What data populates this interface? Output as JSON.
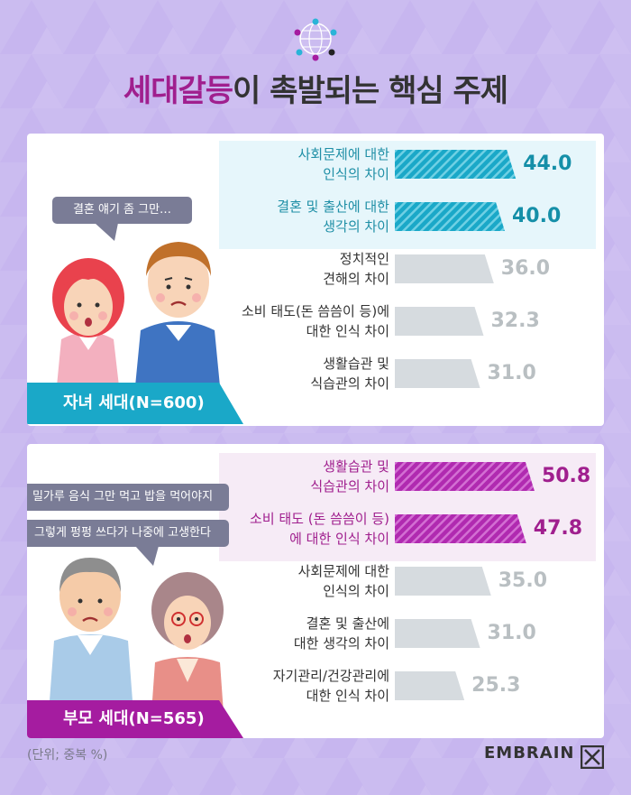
{
  "title": {
    "highlight": "세대갈등",
    "rest": "이 촉발되는 핵심 주제"
  },
  "colors": {
    "background": "#cbbcf0",
    "title_highlight": "#a01f8e",
    "child_accent": "#1aa8c8",
    "parent_accent": "#a51ca0",
    "bar_gray": "#d6dbdf",
    "child_highlight_bg": "#e6f6fb",
    "parent_highlight_bg": "#f6ebf6"
  },
  "panels": [
    {
      "group_label": "자녀 세대(N=600)",
      "bubbles": [
        "결혼 얘기 좀 그만…"
      ]
    },
    {
      "group_label": "부모 세대(N=565)",
      "bubbles": [
        "밀가루 음식 그만 먹고 밥을 먹어야지",
        "그렇게 펑펑 쓰다가 나중에 고생한다"
      ]
    }
  ],
  "chart_data": [
    {
      "type": "bar",
      "orientation": "horizontal",
      "group": "자녀 세대(N=600)",
      "categories": [
        "사회문제에 대한\n인식의 차이",
        "결혼 및 출산에 대한\n생각의 차이",
        "정치적인\n견해의 차이",
        "소비 태도(돈 씀씀이 등)에\n대한 인식 차이",
        "생활습관 및\n식습관의 차이"
      ],
      "values": [
        44.0,
        40.0,
        36.0,
        32.3,
        31.0
      ],
      "value_labels": [
        "44.0",
        "40.0",
        "36.0",
        "32.3",
        "31.0"
      ],
      "highlighted": [
        true,
        true,
        false,
        false,
        false
      ]
    },
    {
      "type": "bar",
      "orientation": "horizontal",
      "group": "부모 세대(N=565)",
      "categories": [
        "생활습관 및\n식습관의 차이",
        "소비 태도 (돈 씀씀이 등)\n에 대한 인식 차이",
        "사회문제에 대한\n인식의 차이",
        "결혼 및 출산에\n대한 생각의 차이",
        "자기관리/건강관리에\n대한 인식 차이"
      ],
      "values": [
        50.8,
        47.8,
        35.0,
        31.0,
        25.3
      ],
      "value_labels": [
        "50.8",
        "47.8",
        "35.0",
        "31.0",
        "25.3"
      ],
      "highlighted": [
        true,
        true,
        false,
        false,
        false
      ]
    }
  ],
  "footer": {
    "unit": "(단위; 중복 %)",
    "brand": "EMBRAIN"
  }
}
